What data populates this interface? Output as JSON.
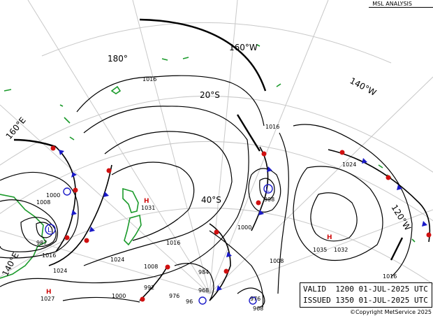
{
  "title": "MSL ANALYSIS",
  "valid": {
    "label": "VALID",
    "time": "1200",
    "date": "01-JUL-2025",
    "zone": "UTC"
  },
  "issued": {
    "label": "ISSUED",
    "time": "1350",
    "date": "01-JUL-2025",
    "zone": "UTC"
  },
  "copyright": "©Copyright MetService 2025",
  "meridian_labels": [
    "180°",
    "160°W",
    "140°W",
    "120°W",
    "160°E",
    "140°E"
  ],
  "latitude_labels": [
    "20°S",
    "40°S"
  ],
  "isobar_labels": [
    "1016",
    "1016",
    "1016",
    "1016",
    "1024",
    "1024",
    "1024",
    "1008",
    "1008",
    "1008",
    "1000",
    "1000",
    "1000",
    "992",
    "984",
    "976",
    "976",
    "968",
    "96",
    "968",
    "1032",
    "1035",
    "1031",
    "1027",
    "987",
    "998",
    "1016"
  ],
  "pressure_centres": [
    {
      "type": "H",
      "value": "1031"
    },
    {
      "type": "H",
      "value": "1035"
    },
    {
      "type": "H",
      "value": "1027"
    },
    {
      "type": "L",
      "value": "987"
    },
    {
      "type": "L",
      "value": "998"
    }
  ],
  "colors": {
    "isobar": "#000000",
    "grid": "#c8c8c8",
    "land": "#1a9a2a",
    "cold_front": "#1a1ac8",
    "warm_front": "#d01010",
    "high": "#d01010",
    "low": "#1a1ac8"
  }
}
